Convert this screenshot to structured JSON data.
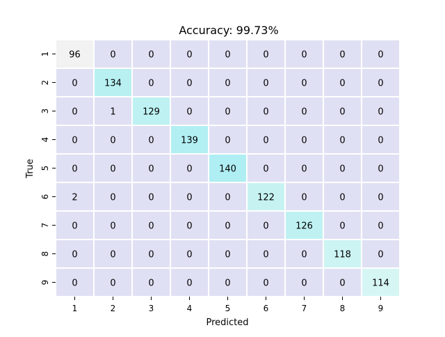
{
  "chart_data": {
    "type": "heatmap",
    "title": "Accuracy: 99.73%",
    "xlabel": "Predicted",
    "ylabel": "True",
    "x_categories": [
      "1",
      "2",
      "3",
      "4",
      "5",
      "6",
      "7",
      "8",
      "9"
    ],
    "y_categories": [
      "1",
      "2",
      "3",
      "4",
      "5",
      "6",
      "7",
      "8",
      "9"
    ],
    "values": [
      [
        96,
        0,
        0,
        0,
        0,
        0,
        0,
        0,
        0
      ],
      [
        0,
        134,
        0,
        0,
        0,
        0,
        0,
        0,
        0
      ],
      [
        0,
        1,
        129,
        0,
        0,
        0,
        0,
        0,
        0
      ],
      [
        0,
        0,
        0,
        139,
        0,
        0,
        0,
        0,
        0
      ],
      [
        0,
        0,
        0,
        0,
        140,
        0,
        0,
        0,
        0
      ],
      [
        2,
        0,
        0,
        0,
        0,
        122,
        0,
        0,
        0
      ],
      [
        0,
        0,
        0,
        0,
        0,
        0,
        126,
        0,
        0
      ],
      [
        0,
        0,
        0,
        0,
        0,
        0,
        0,
        118,
        0
      ],
      [
        0,
        0,
        0,
        0,
        0,
        0,
        0,
        0,
        114
      ]
    ],
    "colors": {
      "off_diagonal": "#e0e0f4",
      "diagonal": {
        "96": "#f2f2f2",
        "134": "#b8f0f2",
        "129": "#bdf1f2",
        "139": "#b1eff3",
        "140": "#afeef3",
        "122": "#c6f3f2",
        "126": "#bff1f2",
        "118": "#ccf4f3",
        "114": "#d6f6f4"
      },
      "grid": "#ffffff"
    },
    "grid": true,
    "legend": "none"
  }
}
